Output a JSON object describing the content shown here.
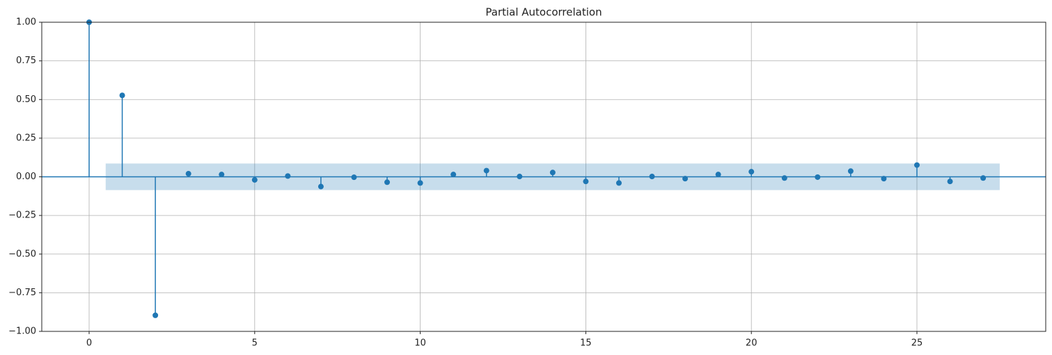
{
  "chart_data": {
    "type": "stem",
    "title": "Partial Autocorrelation",
    "color": "#1f77b4",
    "x": [
      0,
      1,
      2,
      3,
      4,
      5,
      6,
      7,
      8,
      9,
      10,
      11,
      12,
      13,
      14,
      15,
      16,
      17,
      18,
      19,
      20,
      21,
      22,
      23,
      24,
      25,
      26,
      27
    ],
    "values": [
      1.0,
      0.527,
      -0.896,
      0.02,
      0.015,
      -0.02,
      0.005,
      -0.063,
      -0.003,
      -0.035,
      -0.04,
      0.015,
      0.04,
      0.002,
      0.028,
      -0.03,
      -0.04,
      0.002,
      -0.012,
      0.015,
      0.033,
      -0.008,
      -0.002,
      0.037,
      -0.012,
      0.076,
      -0.03,
      -0.008
    ],
    "confidence_band": {
      "x": [
        0.5,
        27.5
      ],
      "lower": -0.086,
      "upper": 0.086
    },
    "xlim": [
      -1.43,
      28.89
    ],
    "xticks": [
      0,
      5,
      10,
      15,
      20,
      25
    ],
    "ylim": [
      -1,
      1
    ],
    "yticks": [
      {
        "value": -1,
        "label": "−1.00"
      },
      {
        "value": -0.75,
        "label": "−0.75"
      },
      {
        "value": -0.5,
        "label": "−0.50"
      },
      {
        "value": -0.25,
        "label": "−0.25"
      },
      {
        "value": 0,
        "label": "0.00"
      },
      {
        "value": 0.25,
        "label": "0.25"
      },
      {
        "value": 0.5,
        "label": "0.50"
      },
      {
        "value": 0.75,
        "label": "0.75"
      },
      {
        "value": 1,
        "label": "1.00"
      }
    ],
    "grid": true
  }
}
